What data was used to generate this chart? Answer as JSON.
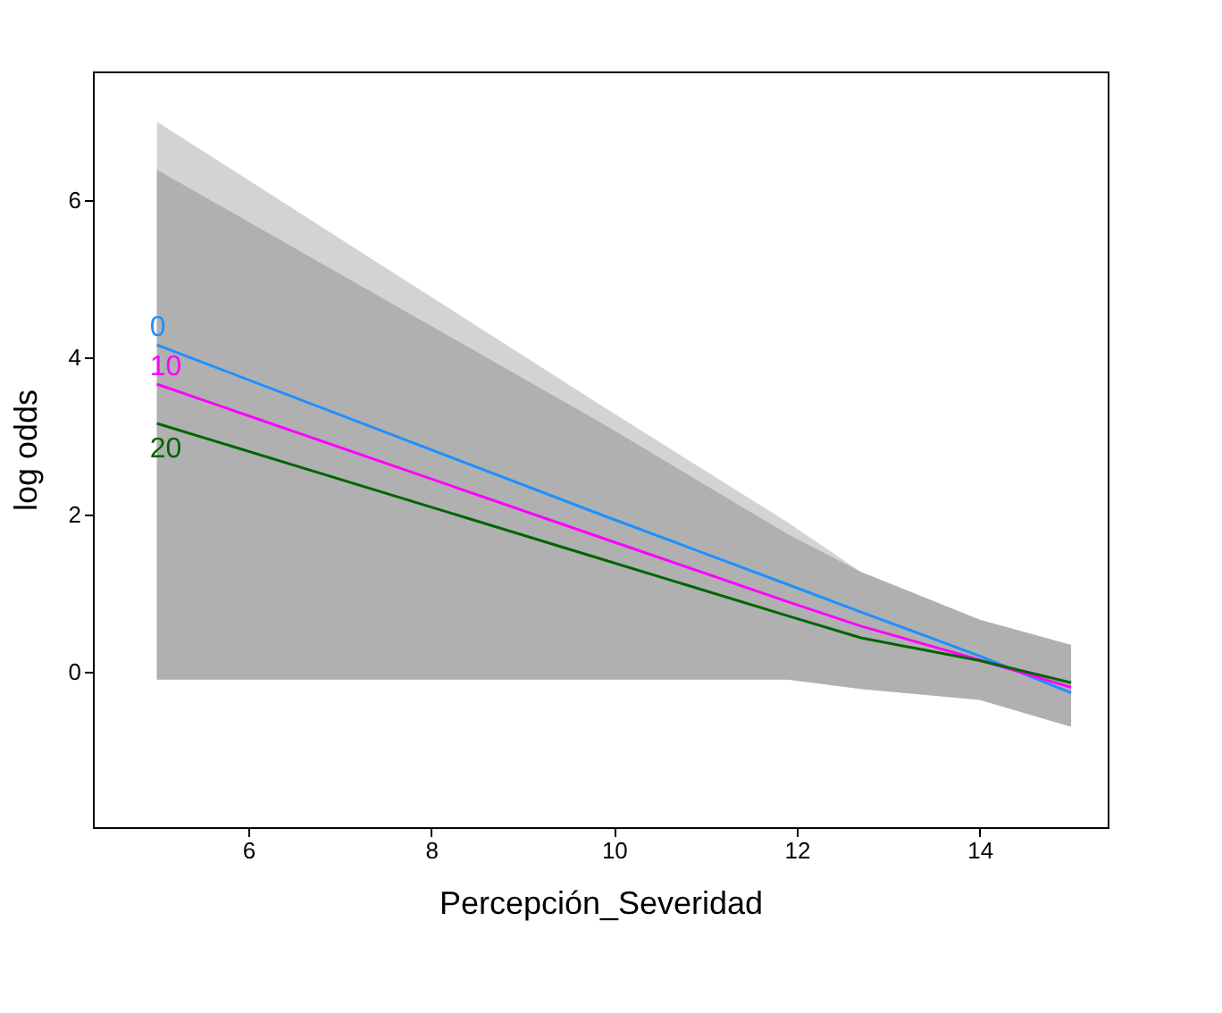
{
  "chart_data": {
    "type": "line",
    "xlabel": "Percepción_Severidad",
    "ylabel": "log odds",
    "xlim": [
      4.3,
      15.4
    ],
    "ylim": [
      -1.98,
      7.64
    ],
    "xticks": [
      6,
      8,
      10,
      12,
      14
    ],
    "yticks": [
      0,
      2,
      4,
      6
    ],
    "grid": false,
    "marker": "none",
    "line_style": "solid",
    "x": [
      5,
      9.9,
      11.9,
      12.7,
      14,
      15
    ],
    "series": [
      {
        "name": "0",
        "color": "#1e90ff",
        "values": [
          4.16,
          1.98,
          1.11,
          0.76,
          0.2,
          -0.27
        ],
        "lower": [
          -0.1,
          -0.1,
          -0.1,
          -0.22,
          -0.36,
          -0.7
        ],
        "upper": [
          7.0,
          3.36,
          1.9,
          1.27,
          0.66,
          0.34
        ]
      },
      {
        "name": "10",
        "color": "#ff00ff",
        "values": [
          3.66,
          1.69,
          0.89,
          0.58,
          0.15,
          -0.2
        ]
      },
      {
        "name": "20",
        "color": "#006400",
        "values": [
          3.16,
          1.42,
          0.71,
          0.43,
          0.14,
          -0.14
        ],
        "lower": [
          -0.1,
          -0.1,
          -0.1,
          -0.22,
          -0.36,
          -0.7
        ],
        "upper": [
          6.39,
          3.14,
          1.75,
          1.27,
          0.66,
          0.34
        ]
      }
    ]
  }
}
